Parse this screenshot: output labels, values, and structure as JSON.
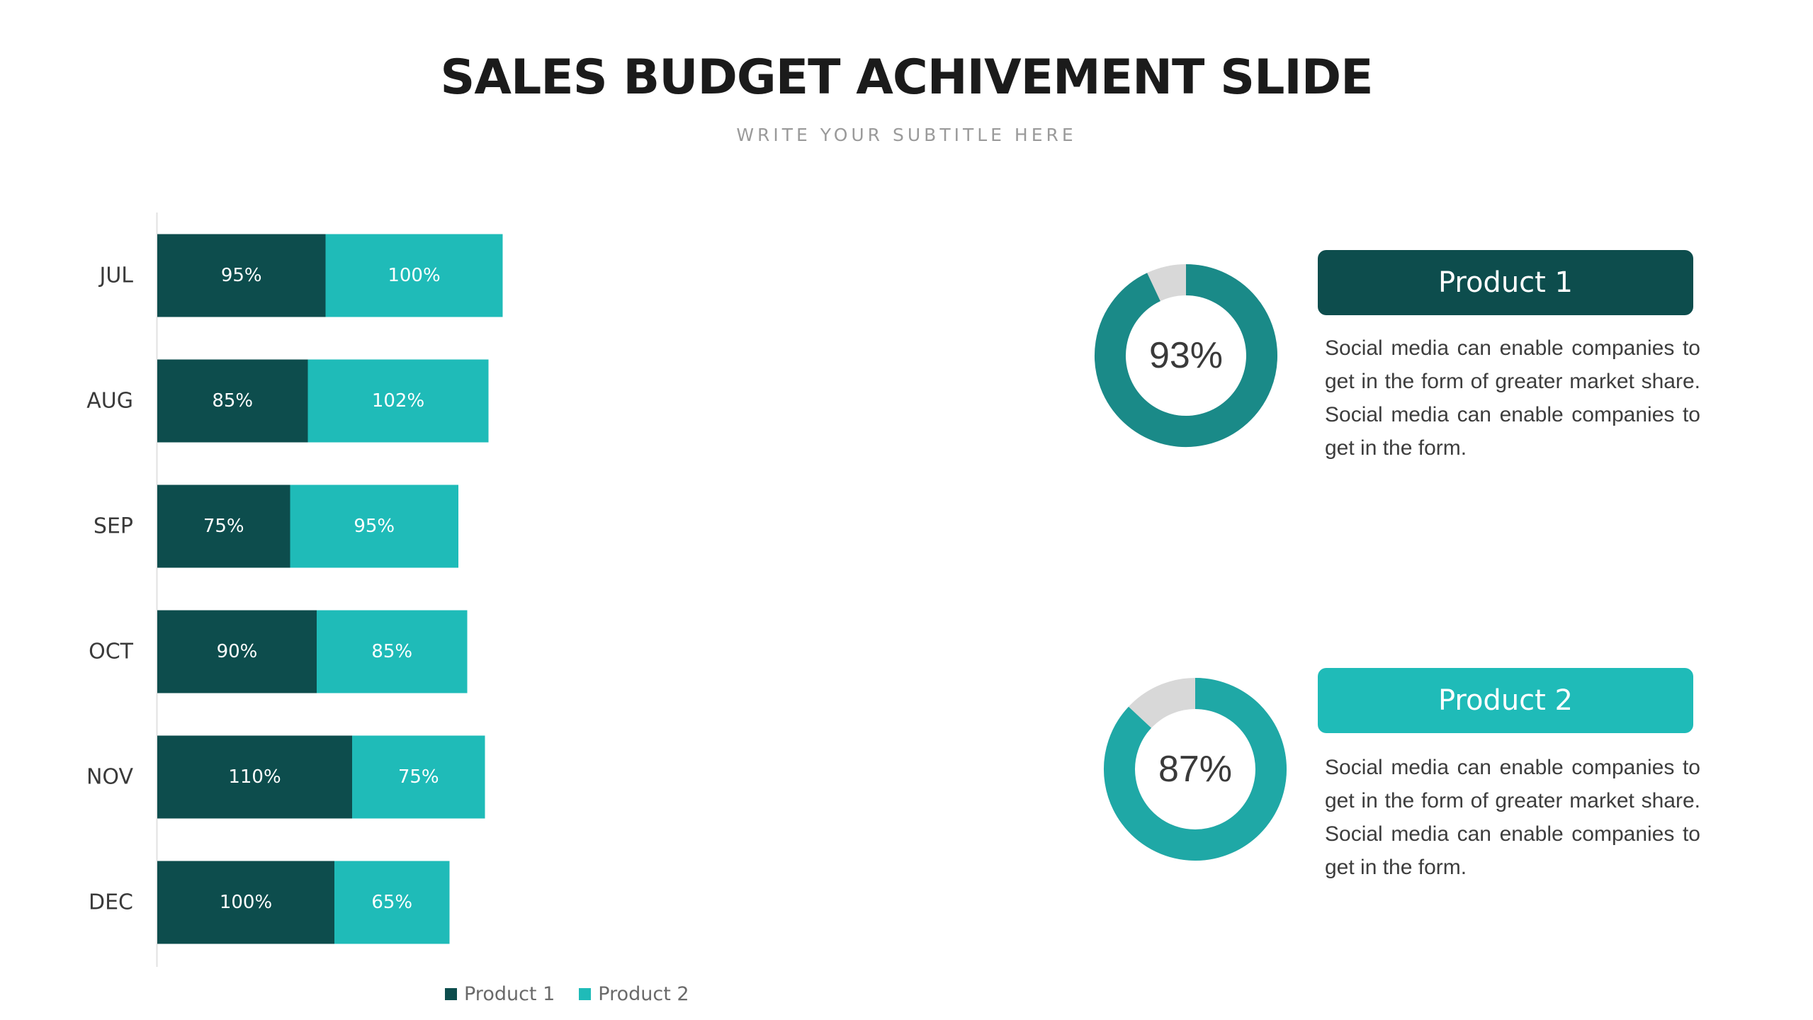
{
  "slide": {
    "title": "SALES BUDGET ACHIVEMENT SLIDE",
    "subtitle": "WRITE YOUR SUBTITLE HERE"
  },
  "colors": {
    "product1": "#0d4d4d",
    "product2": "#1fbbb8",
    "donut1": "#1a8a88",
    "donut2": "#1fa8a6",
    "donut_track": "#d8d8d8"
  },
  "chart_data": {
    "type": "bar",
    "orientation": "horizontal",
    "stacked": true,
    "categories": [
      "JUL",
      "AUG",
      "SEP",
      "OCT",
      "NOV",
      "DEC"
    ],
    "series": [
      {
        "name": "Product 1",
        "values": [
          95,
          85,
          75,
          90,
          110,
          100
        ],
        "labels": [
          "95%",
          "85%",
          "75%",
          "90%",
          "110%",
          "100%"
        ]
      },
      {
        "name": "Product 2",
        "values": [
          100,
          102,
          95,
          85,
          75,
          65
        ],
        "labels": [
          "100%",
          "102%",
          "95%",
          "85%",
          "75%",
          "65%"
        ]
      }
    ],
    "legend": "bottom"
  },
  "products": [
    {
      "name": "Product 1",
      "percent": 93,
      "percent_label": "93%",
      "description": "Social media can enable companies to get in the form of greater market share. Social media can enable companies to get in the form."
    },
    {
      "name": "Product 2",
      "percent": 87,
      "percent_label": "87%",
      "description": "Social media can enable companies to get in the form of greater market share. Social media can enable companies to get in the form."
    }
  ]
}
